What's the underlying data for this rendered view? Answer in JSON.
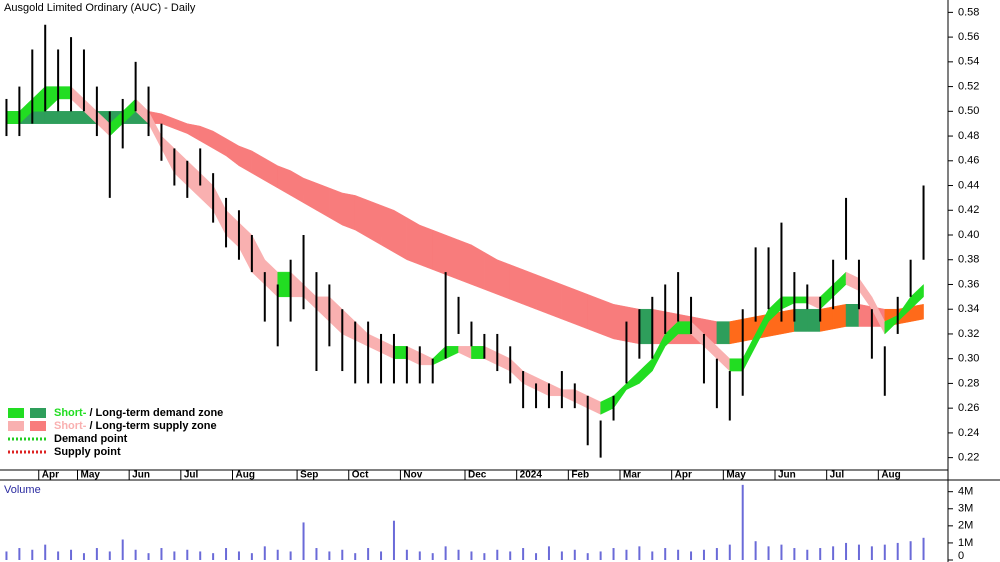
{
  "chart_data": {
    "type": "ohlc",
    "title": "Ausgold Limited Ordinary (AUC) - Daily",
    "categories": [
      null,
      null,
      null,
      "Apr",
      null,
      null,
      "May",
      null,
      null,
      null,
      "Jun",
      null,
      null,
      null,
      "Jul",
      null,
      null,
      null,
      "Aug",
      null,
      null,
      null,
      null,
      "Sep",
      null,
      null,
      null,
      "Oct",
      null,
      null,
      null,
      "Nov",
      null,
      null,
      null,
      null,
      "Dec",
      null,
      null,
      null,
      "2024",
      null,
      null,
      null,
      "Feb",
      null,
      null,
      null,
      "Mar",
      null,
      null,
      null,
      "Apr",
      null,
      null,
      null,
      "May",
      null,
      null,
      null,
      "Jun",
      null,
      null,
      null,
      "Jul",
      null,
      null,
      null,
      "Aug",
      null,
      null,
      null
    ],
    "high": [
      0.51,
      0.52,
      0.55,
      0.57,
      0.55,
      0.56,
      0.55,
      0.52,
      0.5,
      0.51,
      0.54,
      0.52,
      0.49,
      0.47,
      0.46,
      0.47,
      0.45,
      0.43,
      0.42,
      0.4,
      0.37,
      0.36,
      0.38,
      0.4,
      0.37,
      0.36,
      0.34,
      0.33,
      0.33,
      0.32,
      0.32,
      0.31,
      0.31,
      0.3,
      0.37,
      0.35,
      0.33,
      0.32,
      0.32,
      0.31,
      0.29,
      0.28,
      0.28,
      0.29,
      0.28,
      0.27,
      0.25,
      0.27,
      0.33,
      0.34,
      0.35,
      0.36,
      0.37,
      0.35,
      0.32,
      0.3,
      0.29,
      0.34,
      0.39,
      0.39,
      0.41,
      0.37,
      0.36,
      0.35,
      0.38,
      0.43,
      0.38,
      0.34,
      0.31,
      0.35,
      0.38,
      0.44
    ],
    "low": [
      0.48,
      0.48,
      0.49,
      0.5,
      0.5,
      0.5,
      0.5,
      0.48,
      0.43,
      0.47,
      0.5,
      0.48,
      0.46,
      0.44,
      0.43,
      0.44,
      0.41,
      0.39,
      0.38,
      0.37,
      0.33,
      0.31,
      0.33,
      0.34,
      0.29,
      0.31,
      0.29,
      0.28,
      0.28,
      0.28,
      0.28,
      0.28,
      0.28,
      0.28,
      0.3,
      0.32,
      0.31,
      0.3,
      0.29,
      0.28,
      0.26,
      0.26,
      0.26,
      0.26,
      0.26,
      0.23,
      0.22,
      0.25,
      0.28,
      0.3,
      0.3,
      0.32,
      0.33,
      0.32,
      0.28,
      0.26,
      0.25,
      0.27,
      0.33,
      0.34,
      0.33,
      0.33,
      0.34,
      0.33,
      0.34,
      0.38,
      0.34,
      0.3,
      0.27,
      0.32,
      0.35,
      0.38
    ],
    "bar_color": "#000000",
    "short_zone": {
      "lower": [
        0.49,
        0.49,
        0.5,
        0.5,
        0.51,
        0.51,
        0.5,
        0.49,
        0.48,
        0.49,
        0.5,
        0.49,
        0.47,
        0.45,
        0.44,
        0.43,
        0.42,
        0.4,
        0.39,
        0.37,
        0.36,
        0.35,
        0.35,
        0.35,
        0.34,
        0.33,
        0.32,
        0.315,
        0.31,
        0.305,
        0.3,
        0.3,
        0.295,
        0.295,
        0.3,
        0.305,
        0.3,
        0.3,
        0.295,
        0.29,
        0.28,
        0.275,
        0.27,
        0.27,
        0.265,
        0.26,
        0.255,
        0.26,
        0.275,
        0.28,
        0.29,
        0.31,
        0.32,
        0.32,
        0.31,
        0.3,
        0.29,
        0.29,
        0.31,
        0.33,
        0.34,
        0.345,
        0.345,
        0.34,
        0.35,
        0.36,
        0.355,
        0.34,
        0.32,
        0.33,
        0.34,
        0.35
      ],
      "upper": [
        0.5,
        0.5,
        0.51,
        0.52,
        0.52,
        0.52,
        0.51,
        0.5,
        0.49,
        0.5,
        0.51,
        0.5,
        0.48,
        0.47,
        0.46,
        0.45,
        0.44,
        0.42,
        0.41,
        0.4,
        0.38,
        0.37,
        0.37,
        0.36,
        0.35,
        0.35,
        0.34,
        0.33,
        0.32,
        0.315,
        0.31,
        0.31,
        0.305,
        0.3,
        0.31,
        0.31,
        0.31,
        0.31,
        0.305,
        0.3,
        0.29,
        0.285,
        0.28,
        0.275,
        0.275,
        0.27,
        0.265,
        0.27,
        0.28,
        0.29,
        0.3,
        0.32,
        0.33,
        0.33,
        0.32,
        0.31,
        0.3,
        0.3,
        0.32,
        0.34,
        0.35,
        0.35,
        0.35,
        0.35,
        0.36,
        0.37,
        0.365,
        0.35,
        0.33,
        0.335,
        0.35,
        0.36
      ],
      "colors": {
        "rising": "#22dd22",
        "flat": "#22dd22",
        "falling": "#f9b0b0"
      }
    },
    "long_zone": {
      "lower": [
        0.49,
        0.49,
        0.49,
        0.49,
        0.49,
        0.49,
        0.49,
        0.49,
        0.49,
        0.49,
        0.49,
        0.49,
        0.49,
        0.486,
        0.482,
        0.476,
        0.47,
        0.464,
        0.456,
        0.45,
        0.444,
        0.438,
        0.432,
        0.426,
        0.42,
        0.414,
        0.408,
        0.404,
        0.398,
        0.392,
        0.386,
        0.38,
        0.376,
        0.372,
        0.368,
        0.364,
        0.36,
        0.356,
        0.352,
        0.348,
        0.344,
        0.34,
        0.336,
        0.332,
        0.328,
        0.324,
        0.32,
        0.316,
        0.314,
        0.312,
        0.312,
        0.312,
        0.312,
        0.312,
        0.312,
        0.312,
        0.312,
        0.314,
        0.316,
        0.318,
        0.32,
        0.322,
        0.322,
        0.322,
        0.324,
        0.326,
        0.326,
        0.326,
        0.326,
        0.328,
        0.33,
        0.332
      ],
      "upper": [
        0.5,
        0.5,
        0.5,
        0.5,
        0.5,
        0.5,
        0.5,
        0.5,
        0.5,
        0.5,
        0.5,
        0.5,
        0.498,
        0.494,
        0.49,
        0.488,
        0.484,
        0.478,
        0.472,
        0.468,
        0.462,
        0.456,
        0.452,
        0.446,
        0.442,
        0.438,
        0.434,
        0.432,
        0.428,
        0.424,
        0.42,
        0.414,
        0.408,
        0.404,
        0.4,
        0.396,
        0.392,
        0.386,
        0.38,
        0.376,
        0.372,
        0.368,
        0.364,
        0.36,
        0.356,
        0.352,
        0.348,
        0.344,
        0.342,
        0.34,
        0.34,
        0.338,
        0.336,
        0.334,
        0.332,
        0.33,
        0.33,
        0.332,
        0.334,
        0.336,
        0.338,
        0.34,
        0.34,
        0.34,
        0.342,
        0.344,
        0.344,
        0.342,
        0.34,
        0.34,
        0.342,
        0.344
      ],
      "colors": {
        "rising": "#ff6a1a",
        "flat": "#2e9e5b",
        "falling": "#f87c7c"
      }
    },
    "ylim": [
      0.21,
      0.59
    ],
    "yticks": [
      0.22,
      0.24,
      0.26,
      0.28,
      {
        "value": 0.3,
        "label": "0.30"
      },
      0.32,
      0.34,
      0.36,
      0.38,
      {
        "value": 0.4,
        "label": "0.40"
      },
      0.42,
      0.44,
      0.46,
      0.48,
      {
        "value": 0.5,
        "label": "0.50"
      },
      0.52,
      0.54,
      0.56,
      0.58
    ],
    "legend_items": [
      {
        "prefix": "Short-",
        "label": " / Long-term demand zone",
        "colors": [
          "#22dd22",
          "#2e9e5b"
        ],
        "style": "box"
      },
      {
        "prefix": "Short-",
        "label": " / Long-term supply zone",
        "colors": [
          "#f9b0b0",
          "#f87c7c"
        ],
        "style": "box"
      },
      {
        "label": "Demand point",
        "colors": [
          "#22cc22"
        ],
        "style": "dots"
      },
      {
        "label": "Supply point",
        "colors": [
          "#dd2222"
        ],
        "style": "dots"
      }
    ],
    "volume": {
      "label": "Volume",
      "color": "#6a6ad8",
      "values": [
        500000,
        700000,
        600000,
        900000,
        500000,
        600000,
        400000,
        700000,
        500000,
        1200000,
        600000,
        400000,
        700000,
        500000,
        600000,
        500000,
        400000,
        700000,
        500000,
        400000,
        800000,
        600000,
        500000,
        2200000,
        700000,
        500000,
        600000,
        400000,
        700000,
        500000,
        2300000,
        600000,
        500000,
        400000,
        800000,
        600000,
        500000,
        400000,
        600000,
        500000,
        700000,
        400000,
        800000,
        500000,
        600000,
        400000,
        500000,
        700000,
        600000,
        800000,
        500000,
        700000,
        600000,
        500000,
        600000,
        700000,
        900000,
        4400000,
        1100000,
        800000,
        900000,
        700000,
        600000,
        700000,
        800000,
        1000000,
        900000,
        800000,
        900000,
        1000000,
        1100000,
        1300000
      ],
      "ylim": [
        0,
        4450000
      ],
      "yticks": [
        0,
        {
          "value": 1000000,
          "label": "1M"
        },
        {
          "value": 2000000,
          "label": "2M"
        },
        {
          "value": 3000000,
          "label": "3M"
        },
        {
          "value": 4000000,
          "label": "4M"
        }
      ]
    }
  }
}
